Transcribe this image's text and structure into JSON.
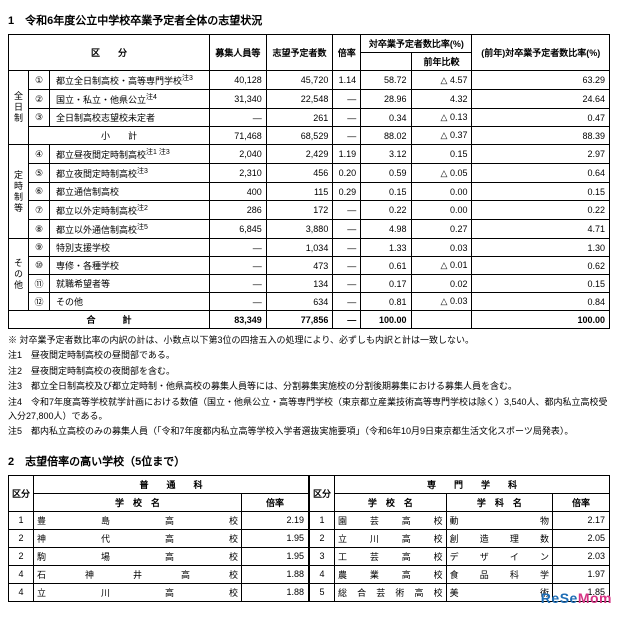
{
  "section1": {
    "title": "1　令和6年度公立中学校卒業予定者全体の志望状況",
    "headers": {
      "kubun": "区　　分",
      "boshu": "募集人員等",
      "shibo": "志望予定者数",
      "bairitsu": "倍率",
      "ratio_group": "対卒業予定者数比率(%)",
      "zen_ratio": "(前年)対卒業予定者数比率(%)",
      "zen_hikaku": "前年比較"
    },
    "groups": [
      {
        "label": "全日制",
        "rows": [
          {
            "no": "①",
            "name": "都立全日制高校・高等専門学校",
            "boshu": "40,128",
            "note": "注3",
            "shibo": "45,720",
            "bai": "1.14",
            "ratio": "58.72",
            "zen": "△ 4.57",
            "prev": "63.29"
          },
          {
            "no": "②",
            "name": "国立・私立・他県公立",
            "boshu": "31,340",
            "note": "注4",
            "shibo": "22,548",
            "bai": "—",
            "ratio": "28.96",
            "zen": "4.32",
            "prev": "24.64"
          },
          {
            "no": "③",
            "name": "全日制高校志望校未定者",
            "boshu": "—",
            "note": "",
            "shibo": "261",
            "bai": "—",
            "ratio": "0.34",
            "zen": "△ 0.13",
            "prev": "0.47"
          }
        ],
        "subtotal": {
          "name": "小　　計",
          "boshu": "71,468",
          "shibo": "68,529",
          "bai": "—",
          "ratio": "88.02",
          "zen": "△ 0.37",
          "prev": "88.39"
        }
      },
      {
        "label": "定時制等",
        "rows": [
          {
            "no": "④",
            "name": "都立昼夜間定時制高校",
            "boshu": "2,040",
            "note": "注1 注3",
            "shibo": "2,429",
            "bai": "1.19",
            "ratio": "3.12",
            "zen": "0.15",
            "prev": "2.97"
          },
          {
            "no": "⑤",
            "name": "都立夜間定時制高校",
            "boshu": "2,310",
            "note": "注3",
            "shibo": "456",
            "bai": "0.20",
            "ratio": "0.59",
            "zen": "△ 0.05",
            "prev": "0.64"
          },
          {
            "no": "⑥",
            "name": "都立通信制高校",
            "boshu": "400",
            "note": "",
            "shibo": "115",
            "bai": "0.29",
            "ratio": "0.15",
            "zen": "0.00",
            "prev": "0.15"
          },
          {
            "no": "⑦",
            "name": "都立以外定時制高校",
            "boshu": "286",
            "note": "注2",
            "shibo": "172",
            "bai": "—",
            "ratio": "0.22",
            "zen": "0.00",
            "prev": "0.22"
          },
          {
            "no": "⑧",
            "name": "都立以外通信制高校",
            "boshu": "6,845",
            "note": "注5",
            "shibo": "3,880",
            "bai": "—",
            "ratio": "4.98",
            "zen": "0.27",
            "prev": "4.71"
          }
        ]
      },
      {
        "label": "その他",
        "rows": [
          {
            "no": "⑨",
            "name": "特別支援学校",
            "boshu": "—",
            "note": "",
            "shibo": "1,034",
            "bai": "—",
            "ratio": "1.33",
            "zen": "0.03",
            "prev": "1.30"
          },
          {
            "no": "⑩",
            "name": "専修・各種学校",
            "boshu": "—",
            "note": "",
            "shibo": "473",
            "bai": "—",
            "ratio": "0.61",
            "zen": "△ 0.01",
            "prev": "0.62"
          },
          {
            "no": "⑪",
            "name": "就職希望者等",
            "boshu": "—",
            "note": "",
            "shibo": "134",
            "bai": "—",
            "ratio": "0.17",
            "zen": "0.02",
            "prev": "0.15"
          },
          {
            "no": "⑫",
            "name": "その他",
            "boshu": "—",
            "note": "",
            "shibo": "634",
            "bai": "—",
            "ratio": "0.81",
            "zen": "△ 0.03",
            "prev": "0.84"
          }
        ]
      }
    ],
    "total": {
      "name": "合　　　計",
      "boshu": "83,349",
      "shibo": "77,856",
      "bai": "—",
      "ratio": "100.00",
      "zen": "",
      "prev": "100.00"
    },
    "notes": [
      "※ 対卒業予定者数比率の内訳の計は、小数点以下第3位の四捨五入の処理により、必ずしも内訳と計は一致しない。",
      "注1　昼夜間定時制高校の昼間部である。",
      "注2　昼夜間定時制高校の夜間部を含む。",
      "注3　都立全日制高校及び都立定時制・他県高校の募集人員等には、分割募集実施校の分割後期募集における募集人員を含む。",
      "注4　令和7年度高等学校就学計画における数値（国立・他県公立・高等専門学校（東京都立産業技術高等専門学校は除く）3,540人、都内私立高校受入分27,800人）である。",
      "注5　都内私立高校のみの募集人員（「令和7年度都内私立高等学校入学者選抜実施要項」（令和6年10月9日東京都生活文化スポーツ局発表）。"
    ]
  },
  "section2": {
    "title": "2　志望倍率の高い学校（5位まで）",
    "left": {
      "header_group": "普　　通　　科",
      "col_kubun": "区分",
      "col_name": "学　校　名",
      "col_bai": "倍率",
      "rows": [
        {
          "r": "1",
          "name": "豊　島　高　校",
          "bai": "2.19"
        },
        {
          "r": "2",
          "name": "神　代　高　校",
          "bai": "1.95"
        },
        {
          "r": "2",
          "name": "駒　場　高　校",
          "bai": "1.95"
        },
        {
          "r": "4",
          "name": "石　神　井　高　校",
          "bai": "1.88"
        },
        {
          "r": "4",
          "name": "立　川　高　校",
          "bai": "1.88"
        }
      ]
    },
    "right": {
      "header_group": "専　　門　　学　　科",
      "col_kubun": "区分",
      "col_name": "学　校　名",
      "col_dept": "学　科　名",
      "col_bai": "倍率",
      "rows": [
        {
          "r": "1",
          "name": "園　芸　高　校",
          "dept": "動　　物",
          "bai": "2.17"
        },
        {
          "r": "2",
          "name": "立　川　高　校",
          "dept": "創　造　理　数",
          "bai": "2.05"
        },
        {
          "r": "3",
          "name": "工　芸　高　校",
          "dept": "デ　ザ　イ　ン",
          "bai": "2.03"
        },
        {
          "r": "4",
          "name": "農　業　高　校",
          "dept": "食　品　科　学",
          "bai": "1.97"
        },
        {
          "r": "5",
          "name": "総 合 芸 術 高 校",
          "dept": "美　　術",
          "bai": "1.85"
        }
      ]
    }
  },
  "watermark": {
    "brand1": "ReSe",
    "brand2": "Mom"
  }
}
